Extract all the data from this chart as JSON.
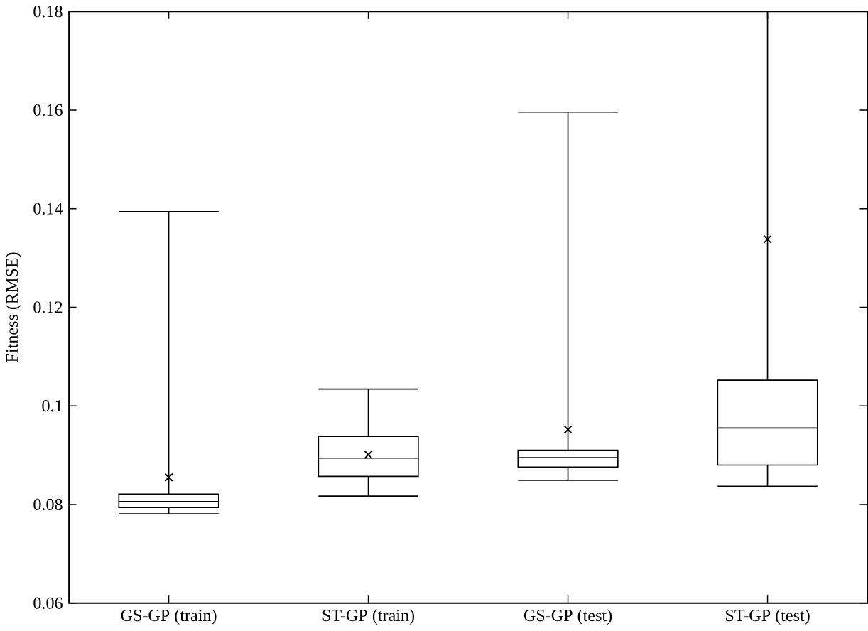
{
  "chart_data": {
    "type": "box",
    "ylabel": "Fitness (RMSE)",
    "categories": [
      "GS-GP (train)",
      "ST-GP (train)",
      "GS-GP (test)",
      "ST-GP (test)"
    ],
    "boxes": [
      {
        "low": 0.0781,
        "q1": 0.0794,
        "median": 0.0806,
        "q3": 0.0821,
        "high": 0.1394,
        "mean": 0.0855
      },
      {
        "low": 0.0817,
        "q1": 0.0857,
        "median": 0.0894,
        "q3": 0.0938,
        "high": 0.1034,
        "mean": 0.0901
      },
      {
        "low": 0.0849,
        "q1": 0.0876,
        "median": 0.0895,
        "q3": 0.091,
        "high": 0.1596,
        "mean": 0.0952
      },
      {
        "low": 0.0837,
        "q1": 0.088,
        "median": 0.0955,
        "q3": 0.1052,
        "high": 0.18,
        "mean": 0.1338
      }
    ],
    "color": "#000000",
    "ylim": [
      0.06,
      0.18
    ],
    "yticks": [
      0.06,
      0.08,
      0.1,
      0.12,
      0.14,
      0.16,
      0.18
    ],
    "grid": false
  }
}
